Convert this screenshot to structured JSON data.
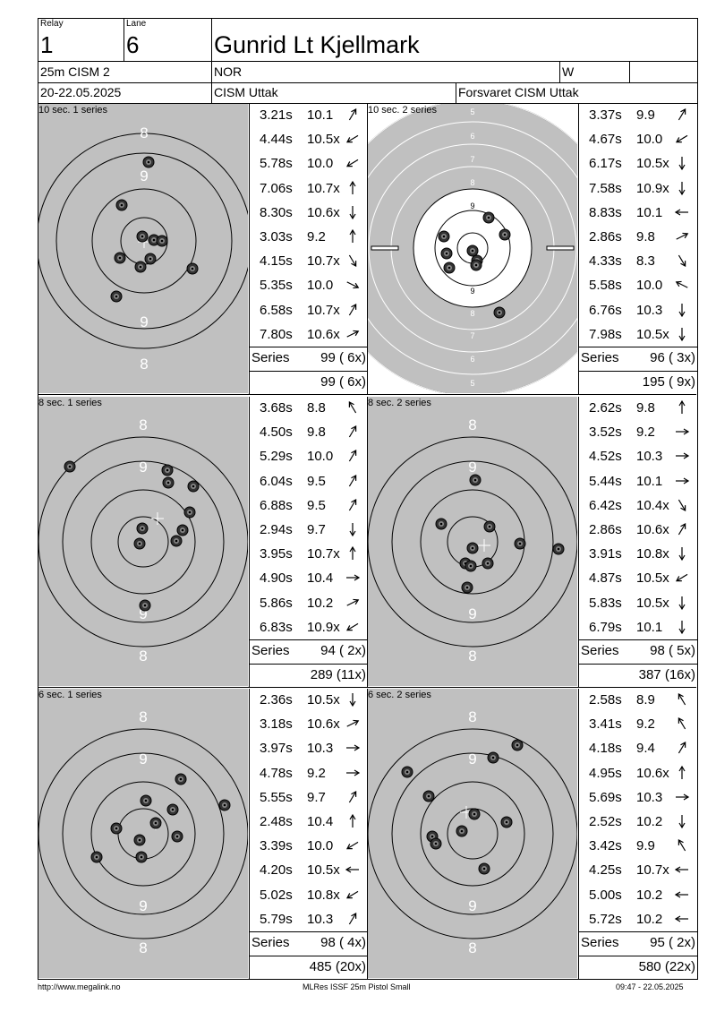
{
  "header": {
    "relay_label": "Relay",
    "relay": "1",
    "lane_label": "Lane",
    "lane": "6",
    "name": "Gunrid Lt Kjellmark",
    "event": "25m CISM 2",
    "nation": "NOR",
    "gender": "W",
    "date": "20-22.05.2025",
    "competition": "CISM Uttak",
    "club": "Forsvaret CISM Uttak"
  },
  "panels": [
    {
      "title": "10 sec. 1 series",
      "shots": [
        {
          "time": "3.21s",
          "value": "10.1",
          "dir": "up-right"
        },
        {
          "time": "4.44s",
          "value": "10.5x",
          "dir": "down-left"
        },
        {
          "time": "5.78s",
          "value": "10.0",
          "dir": "down-left"
        },
        {
          "time": "7.06s",
          "value": "10.7x",
          "dir": "up"
        },
        {
          "time": "8.30s",
          "value": "10.6x",
          "dir": "down"
        },
        {
          "time": "3.03s",
          "value": "9.2",
          "dir": "up"
        },
        {
          "time": "4.15s",
          "value": "10.7x",
          "dir": "down-right"
        },
        {
          "time": "5.35s",
          "value": "10.0",
          "dir": "right-down"
        },
        {
          "time": "6.58s",
          "value": "10.7x",
          "dir": "up-right"
        },
        {
          "time": "7.80s",
          "value": "10.6x",
          "dir": "right-up"
        }
      ],
      "series_label": "Series",
      "series_total": "99 ( 6x)",
      "cumulative": "99 ( 6x)"
    },
    {
      "title": "10 sec. 2 series",
      "shots": [
        {
          "time": "3.37s",
          "value": "9.9",
          "dir": "up-right"
        },
        {
          "time": "4.67s",
          "value": "10.0",
          "dir": "down-left"
        },
        {
          "time": "6.17s",
          "value": "10.5x",
          "dir": "down"
        },
        {
          "time": "7.58s",
          "value": "10.9x",
          "dir": "down"
        },
        {
          "time": "8.83s",
          "value": "10.1",
          "dir": "left"
        },
        {
          "time": "2.86s",
          "value": "9.8",
          "dir": "right-up"
        },
        {
          "time": "4.33s",
          "value": "8.3",
          "dir": "down-right"
        },
        {
          "time": "5.58s",
          "value": "10.0",
          "dir": "left-up"
        },
        {
          "time": "6.76s",
          "value": "10.3",
          "dir": "down"
        },
        {
          "time": "7.98s",
          "value": "10.5x",
          "dir": "down"
        }
      ],
      "series_label": "Series",
      "series_total": "96 ( 3x)",
      "cumulative": "195 ( 9x)"
    },
    {
      "title": "8 sec. 1 series",
      "shots": [
        {
          "time": "3.68s",
          "value": "8.8",
          "dir": "up-left"
        },
        {
          "time": "4.50s",
          "value": "9.8",
          "dir": "up-right"
        },
        {
          "time": "5.29s",
          "value": "10.0",
          "dir": "up-right"
        },
        {
          "time": "6.04s",
          "value": "9.5",
          "dir": "up-right"
        },
        {
          "time": "6.88s",
          "value": "9.5",
          "dir": "up-right"
        },
        {
          "time": "2.94s",
          "value": "9.7",
          "dir": "down"
        },
        {
          "time": "3.95s",
          "value": "10.7x",
          "dir": "up"
        },
        {
          "time": "4.90s",
          "value": "10.4",
          "dir": "right"
        },
        {
          "time": "5.86s",
          "value": "10.2",
          "dir": "right-up"
        },
        {
          "time": "6.83s",
          "value": "10.9x",
          "dir": "down-left"
        }
      ],
      "series_label": "Series",
      "series_total": "94 ( 2x)",
      "cumulative": "289 (11x)"
    },
    {
      "title": "8 sec. 2 series",
      "shots": [
        {
          "time": "2.62s",
          "value": "9.8",
          "dir": "up"
        },
        {
          "time": "3.52s",
          "value": "9.2",
          "dir": "right"
        },
        {
          "time": "4.52s",
          "value": "10.3",
          "dir": "right"
        },
        {
          "time": "5.44s",
          "value": "10.1",
          "dir": "right"
        },
        {
          "time": "6.42s",
          "value": "10.4x",
          "dir": "down-right"
        },
        {
          "time": "2.86s",
          "value": "10.6x",
          "dir": "up-right"
        },
        {
          "time": "3.91s",
          "value": "10.8x",
          "dir": "down"
        },
        {
          "time": "4.87s",
          "value": "10.5x",
          "dir": "down-left"
        },
        {
          "time": "5.83s",
          "value": "10.5x",
          "dir": "down"
        },
        {
          "time": "6.79s",
          "value": "10.1",
          "dir": "down"
        }
      ],
      "series_label": "Series",
      "series_total": "98 ( 5x)",
      "cumulative": "387 (16x)"
    },
    {
      "title": "6 sec. 1 series",
      "shots": [
        {
          "time": "2.36s",
          "value": "10.5x",
          "dir": "down"
        },
        {
          "time": "3.18s",
          "value": "10.6x",
          "dir": "right-up"
        },
        {
          "time": "3.97s",
          "value": "10.3",
          "dir": "right"
        },
        {
          "time": "4.78s",
          "value": "9.2",
          "dir": "right"
        },
        {
          "time": "5.55s",
          "value": "9.7",
          "dir": "up-right"
        },
        {
          "time": "2.48s",
          "value": "10.4",
          "dir": "up"
        },
        {
          "time": "3.39s",
          "value": "10.0",
          "dir": "down-left"
        },
        {
          "time": "4.20s",
          "value": "10.5x",
          "dir": "left"
        },
        {
          "time": "5.02s",
          "value": "10.8x",
          "dir": "down-left"
        },
        {
          "time": "5.79s",
          "value": "10.3",
          "dir": "up-right"
        }
      ],
      "series_label": "Series",
      "series_total": "98 ( 4x)",
      "cumulative": "485 (20x)"
    },
    {
      "title": "6 sec. 2 series",
      "shots": [
        {
          "time": "2.58s",
          "value": "8.9",
          "dir": "up-left"
        },
        {
          "time": "3.41s",
          "value": "9.2",
          "dir": "up-left"
        },
        {
          "time": "4.18s",
          "value": "9.4",
          "dir": "up-right"
        },
        {
          "time": "4.95s",
          "value": "10.6x",
          "dir": "up"
        },
        {
          "time": "5.69s",
          "value": "10.3",
          "dir": "right"
        },
        {
          "time": "2.52s",
          "value": "10.2",
          "dir": "down"
        },
        {
          "time": "3.42s",
          "value": "9.9",
          "dir": "up-left"
        },
        {
          "time": "4.25s",
          "value": "10.7x",
          "dir": "left"
        },
        {
          "time": "5.00s",
          "value": "10.2",
          "dir": "left"
        },
        {
          "time": "5.72s",
          "value": "10.2",
          "dir": "left"
        }
      ],
      "series_label": "Series",
      "series_total": "95 ( 2x)",
      "cumulative": "580 (22x)"
    }
  ],
  "targets": [
    {
      "type": "precision",
      "ring_labels": [
        "8",
        "9",
        "9",
        "8"
      ]
    },
    {
      "type": "precision-wide",
      "ring_labels": [
        "5",
        "6",
        "7",
        "8",
        "9",
        "9",
        "8",
        "7",
        "6",
        "5"
      ]
    },
    {
      "type": "duel",
      "ring_labels": [
        "8",
        "9",
        "9",
        "8"
      ]
    },
    {
      "type": "duel",
      "ring_labels": [
        "8",
        "9",
        "9",
        "8"
      ]
    },
    {
      "type": "duel",
      "ring_labels": [
        "8",
        "9",
        "9",
        "8"
      ]
    },
    {
      "type": "duel",
      "ring_labels": [
        "8",
        "9",
        "9",
        "8"
      ]
    }
  ],
  "footer": {
    "left": "http://www.megalink.no",
    "center": "MLRes ISSF 25m Pistol Small",
    "right": "09:47 - 22.05.2025"
  },
  "colors": {
    "target_bg": "#c0c0c0",
    "ring": "#000000",
    "number": "#ffffff"
  }
}
